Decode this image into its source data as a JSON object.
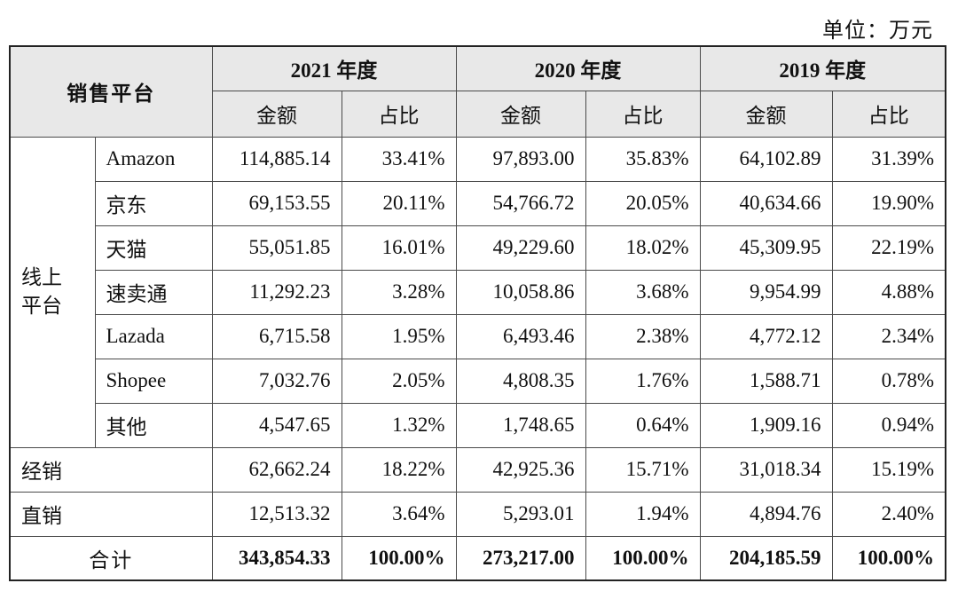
{
  "unit_label": "单位：万元",
  "header": {
    "platform": "销售平台",
    "years": [
      "2021 年度",
      "2020 年度",
      "2019 年度"
    ],
    "amount": "金额",
    "ratio": "占比"
  },
  "online_group": {
    "label_line1": "线上",
    "label_line2": "平台",
    "rows": [
      {
        "name": "Amazon",
        "v": [
          "114,885.14",
          "33.41%",
          "97,893.00",
          "35.83%",
          "64,102.89",
          "31.39%"
        ]
      },
      {
        "name": "京东",
        "v": [
          "69,153.55",
          "20.11%",
          "54,766.72",
          "20.05%",
          "40,634.66",
          "19.90%"
        ]
      },
      {
        "name": "天猫",
        "v": [
          "55,051.85",
          "16.01%",
          "49,229.60",
          "18.02%",
          "45,309.95",
          "22.19%"
        ]
      },
      {
        "name": "速卖通",
        "v": [
          "11,292.23",
          "3.28%",
          "10,058.86",
          "3.68%",
          "9,954.99",
          "4.88%"
        ]
      },
      {
        "name": "Lazada",
        "v": [
          "6,715.58",
          "1.95%",
          "6,493.46",
          "2.38%",
          "4,772.12",
          "2.34%"
        ]
      },
      {
        "name": "Shopee",
        "v": [
          "7,032.76",
          "2.05%",
          "4,808.35",
          "1.76%",
          "1,588.71",
          "0.78%"
        ]
      },
      {
        "name": "其他",
        "v": [
          "4,547.65",
          "1.32%",
          "1,748.65",
          "0.64%",
          "1,909.16",
          "0.94%"
        ]
      }
    ]
  },
  "other_rows": [
    {
      "name": "经销",
      "v": [
        "62,662.24",
        "18.22%",
        "42,925.36",
        "15.71%",
        "31,018.34",
        "15.19%"
      ]
    },
    {
      "name": "直销",
      "v": [
        "12,513.32",
        "3.64%",
        "5,293.01",
        "1.94%",
        "4,894.76",
        "2.40%"
      ]
    }
  ],
  "total": {
    "name": "合计",
    "v": [
      "343,854.33",
      "100.00%",
      "273,217.00",
      "100.00%",
      "204,185.59",
      "100.00%"
    ]
  }
}
